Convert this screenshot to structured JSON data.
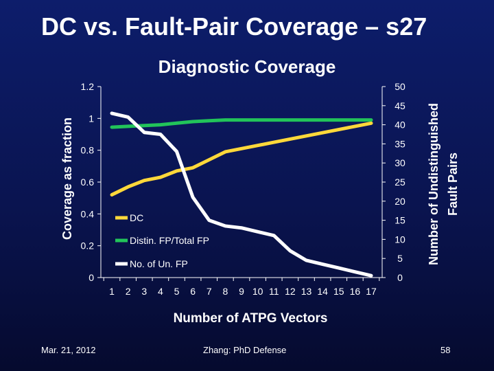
{
  "slide": {
    "title": "DC vs. Fault-Pair Coverage – s27",
    "footer_date": "Mar. 21, 2012",
    "footer_center": "Zhang: PhD Defense",
    "page_number": "58"
  },
  "colors": {
    "dc": "#ffd83a",
    "distin": "#22c45a",
    "unfp": "#ffffff",
    "axis": "#ffffff"
  },
  "chart_data": {
    "type": "line",
    "title": "Diagnostic Coverage",
    "xlabel": "Number of ATPG Vectors",
    "ylabel_left": "Coverage as fraction",
    "ylabel_right": "Number of Undistinguished Fault Pairs",
    "categories": [
      "1",
      "2",
      "3",
      "4",
      "5",
      "6",
      "7",
      "8",
      "9",
      "10",
      "11",
      "12",
      "13",
      "14",
      "15",
      "16",
      "17"
    ],
    "ylim_left": [
      0,
      1.2
    ],
    "yticks_left": [
      "0",
      "0.2",
      "0.4",
      "0.6",
      "0.8",
      "1",
      "1.2"
    ],
    "ylim_right": [
      0,
      50
    ],
    "yticks_right": [
      "0",
      "5",
      "10",
      "15",
      "20",
      "25",
      "30",
      "35",
      "40",
      "45",
      "50"
    ],
    "grid": false,
    "legend_position": "inside-left",
    "series": [
      {
        "name": "DC",
        "axis": "left",
        "color_key": "dc",
        "values": [
          0.52,
          0.57,
          0.61,
          0.63,
          0.67,
          0.69,
          0.74,
          0.79,
          0.81,
          0.83,
          0.85,
          0.87,
          0.89,
          0.91,
          0.93,
          0.95,
          0.97
        ]
      },
      {
        "name": "Distin. FP/Total FP",
        "axis": "left",
        "color_key": "distin",
        "values": [
          0.945,
          0.95,
          0.955,
          0.96,
          0.97,
          0.98,
          0.985,
          0.99,
          0.99,
          0.99,
          0.99,
          0.99,
          0.99,
          0.99,
          0.99,
          0.99,
          0.99
        ]
      },
      {
        "name": "No. of Un. FP",
        "axis": "right",
        "color_key": "unfp",
        "values": [
          43,
          42,
          38,
          37.5,
          33,
          21,
          15,
          13.5,
          13,
          12,
          11,
          7,
          4.5,
          3.5,
          2.5,
          1.5,
          0.5
        ]
      }
    ]
  }
}
